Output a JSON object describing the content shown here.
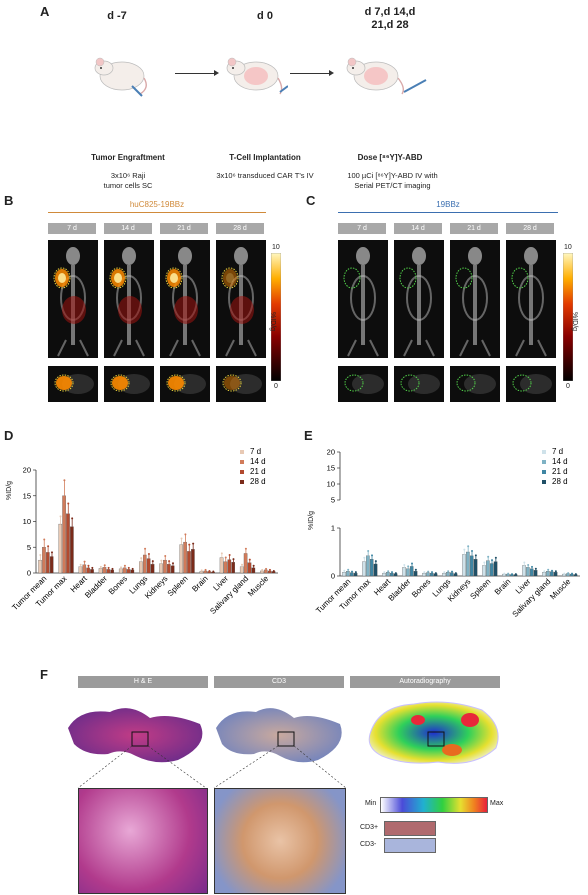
{
  "panel_a": {
    "label": "A",
    "days": [
      "d -7",
      "d 0",
      "d 7,d 14,d\n21,d 28"
    ],
    "steps": [
      {
        "title": "Tumor Engraftment",
        "desc": "3x10⁶ Raji\ntumor cells SC"
      },
      {
        "title": "T-Cell Implantation",
        "desc": "3x10⁶ transduced CAR T's IV"
      },
      {
        "title": "Dose [⁸⁶Y]Y-ABD",
        "desc": "100 µCi [⁸⁶Y]Y-ABD IV with\nSerial PET/CT imaging"
      }
    ]
  },
  "panel_b": {
    "label": "B",
    "group": "huC825-19BBz",
    "group_color": "#d08a3a",
    "timepoints": [
      "7 d",
      "14 d",
      "21 d",
      "28 d"
    ],
    "colorbar": {
      "max": "10",
      "min": "0",
      "unit": "%ID/g"
    }
  },
  "panel_c": {
    "label": "C",
    "group": "19BBz",
    "group_color": "#3b6fb0",
    "timepoints": [
      "7 d",
      "14 d",
      "21 d",
      "28 d"
    ],
    "colorbar": {
      "max": "10",
      "min": "0",
      "unit": "%ID/g"
    }
  },
  "chart_data": [
    {
      "panel": "D",
      "type": "bar",
      "ylabel": "%ID/g",
      "ylim": [
        0,
        20
      ],
      "yticks": [
        "0",
        "5",
        "10",
        "15",
        "20"
      ],
      "legend_position": "top-right",
      "categories": [
        "Tumor mean",
        "Tumor max",
        "Heart",
        "Bladder",
        "Bones",
        "Lungs",
        "Kidneys",
        "Spleen",
        "Brain",
        "Liver",
        "Salivary gland",
        "Muscle"
      ],
      "series": [
        {
          "name": "7 d",
          "color": "#e8c9b4",
          "values": [
            2.5,
            9.5,
            1.2,
            0.9,
            0.8,
            2.2,
            1.8,
            5.5,
            0.3,
            3.0,
            1.2,
            0.4
          ]
        },
        {
          "name": "14 d",
          "color": "#d17b5a",
          "values": [
            5.0,
            15.0,
            1.6,
            1.1,
            1.0,
            3.5,
            2.5,
            6.0,
            0.4,
            2.2,
            3.8,
            0.6
          ]
        },
        {
          "name": "21 d",
          "color": "#b24a2f",
          "values": [
            4.0,
            11.5,
            1.0,
            0.7,
            0.7,
            2.8,
            1.7,
            4.2,
            0.3,
            2.6,
            2.0,
            0.4
          ]
        },
        {
          "name": "28 d",
          "color": "#7b2b1a",
          "values": [
            3.2,
            9.0,
            0.7,
            0.6,
            0.6,
            1.7,
            1.4,
            4.6,
            0.2,
            2.1,
            1.0,
            0.3
          ]
        }
      ],
      "errors": [
        [
          1.0,
          1.5,
          0.4,
          0.3,
          0.3,
          0.7,
          0.6,
          1.2,
          0.2,
          0.8,
          0.4,
          0.2
        ],
        [
          1.5,
          3.0,
          0.6,
          0.4,
          0.4,
          1.2,
          0.8,
          1.5,
          0.2,
          0.8,
          0.9,
          0.2
        ],
        [
          1.2,
          2.0,
          0.4,
          0.3,
          0.3,
          0.9,
          0.6,
          1.3,
          0.1,
          0.9,
          0.6,
          0.2
        ],
        [
          0.8,
          1.6,
          0.3,
          0.2,
          0.2,
          0.6,
          0.5,
          1.1,
          0.1,
          0.6,
          0.4,
          0.1
        ]
      ]
    },
    {
      "panel": "E",
      "type": "bar",
      "ylabel": "%ID/g",
      "axis_break": true,
      "upper_yticks": [
        "5",
        "10",
        "15",
        "20"
      ],
      "lower_yticks": [
        "0",
        "1"
      ],
      "legend_position": "top-right",
      "categories": [
        "Tumor mean",
        "Tumor max",
        "Heart",
        "Bladder",
        "Bones",
        "Lungs",
        "Kidneys",
        "Spleen",
        "Brain",
        "Liver",
        "Salivary gland",
        "Muscle"
      ],
      "series": [
        {
          "name": "7 d",
          "color": "#cfe2ea",
          "values": [
            0.08,
            0.3,
            0.06,
            0.18,
            0.06,
            0.06,
            0.45,
            0.22,
            0.04,
            0.22,
            0.08,
            0.04
          ]
        },
        {
          "name": "14 d",
          "color": "#7fb2c4",
          "values": [
            0.1,
            0.42,
            0.08,
            0.15,
            0.07,
            0.08,
            0.5,
            0.32,
            0.04,
            0.18,
            0.1,
            0.05
          ]
        },
        {
          "name": "21 d",
          "color": "#3f86a3",
          "values": [
            0.07,
            0.35,
            0.06,
            0.2,
            0.06,
            0.07,
            0.42,
            0.26,
            0.03,
            0.15,
            0.09,
            0.04
          ]
        },
        {
          "name": "28 d",
          "color": "#1f4f66",
          "values": [
            0.06,
            0.25,
            0.05,
            0.1,
            0.05,
            0.05,
            0.35,
            0.3,
            0.03,
            0.12,
            0.08,
            0.03
          ]
        }
      ],
      "errors": [
        [
          0.03,
          0.08,
          0.02,
          0.05,
          0.02,
          0.02,
          0.1,
          0.06,
          0.01,
          0.06,
          0.02,
          0.01
        ],
        [
          0.03,
          0.1,
          0.02,
          0.05,
          0.02,
          0.02,
          0.12,
          0.08,
          0.01,
          0.05,
          0.03,
          0.01
        ],
        [
          0.02,
          0.08,
          0.02,
          0.06,
          0.02,
          0.02,
          0.1,
          0.07,
          0.01,
          0.04,
          0.02,
          0.01
        ],
        [
          0.02,
          0.06,
          0.01,
          0.03,
          0.01,
          0.01,
          0.08,
          0.08,
          0.01,
          0.03,
          0.02,
          0.01
        ]
      ]
    }
  ],
  "panel_f": {
    "label": "F",
    "headers": [
      "H & E",
      "CD3",
      "Autoradiography"
    ],
    "scale": {
      "min": "Min",
      "max": "Max"
    },
    "cd3_legend": [
      {
        "label": "CD3+",
        "color": "#b06a6e"
      },
      {
        "label": "CD3-",
        "color": "#a9b5dc"
      }
    ]
  }
}
